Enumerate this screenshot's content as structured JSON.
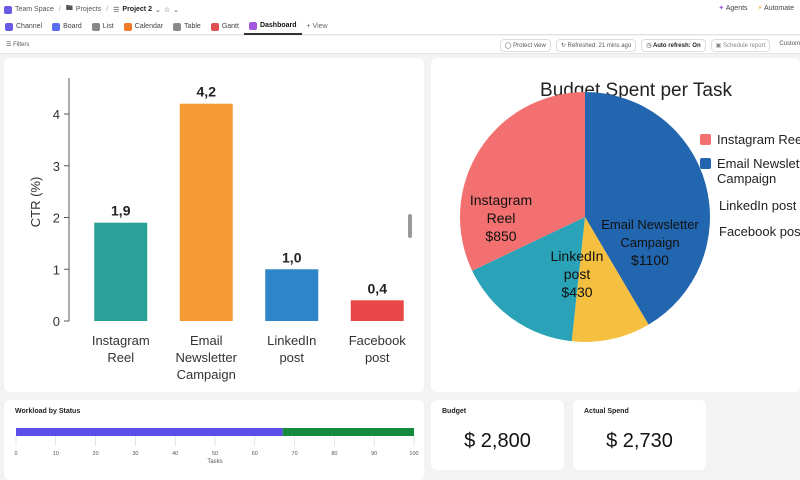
{
  "breadcrumb": {
    "space": "Team Space",
    "folder": "Projects",
    "project": "Project 2"
  },
  "top_actions": {
    "agents": "Agents",
    "automate": "Automate"
  },
  "views": [
    {
      "label": "Channel",
      "color": "#6a5be2"
    },
    {
      "label": "Board",
      "color": "#5a6cf0"
    },
    {
      "label": "List",
      "color": "#888888"
    },
    {
      "label": "Calendar",
      "color": "#f07a2a"
    },
    {
      "label": "Table",
      "color": "#8a8a8a"
    },
    {
      "label": "Gantt",
      "color": "#e05050"
    },
    {
      "label": "Dashboard",
      "color": "#a259e0"
    }
  ],
  "add_view": "+ View",
  "toolbar": {
    "filters": "Filters",
    "protect": "Protect view",
    "refreshed": "Refreshed: 21 mins ago",
    "auto_refresh": "Auto refresh: On",
    "schedule": "Schedule report",
    "custom": "Custom"
  },
  "bar_chart": {
    "ylabel": "CTR (%)",
    "ticks": [
      "0",
      "1",
      "2",
      "3",
      "4"
    ]
  },
  "pie_chart": {
    "title": "Budget Spent per Task"
  },
  "workload": {
    "title": "Workload by Status",
    "xlabel": "Tasks",
    "ticks": [
      "0",
      "10",
      "20",
      "30",
      "40",
      "50",
      "60",
      "70",
      "80",
      "90",
      "100"
    ],
    "segments": [
      {
        "value": 67,
        "color": "#5b4ee6"
      },
      {
        "value": 33,
        "color": "#138a3e"
      }
    ]
  },
  "budget": {
    "title": "Budget",
    "value": "$ 2,800"
  },
  "actual": {
    "title": "Actual Spend",
    "value": "$ 2,730"
  },
  "chart_data": [
    {
      "type": "bar",
      "categories": [
        "Instagram Reel",
        "Email Newsletter Campaign",
        "LinkedIn post",
        "Facebook post"
      ],
      "category_lines": [
        [
          "Instagram",
          "Reel"
        ],
        [
          "Email",
          "Newsletter",
          "Campaign"
        ],
        [
          "LinkedIn",
          "post"
        ],
        [
          "Facebook",
          "post"
        ]
      ],
      "values": [
        1.9,
        4.2,
        1.0,
        0.4
      ],
      "value_labels": [
        "1,9",
        "4,2",
        "1,0",
        "0,4"
      ],
      "colors": [
        "#2aa198",
        "#f59a34",
        "#2e86c8",
        "#e84848"
      ],
      "ylabel": "CTR (%)",
      "ylim": [
        0,
        4.6
      ]
    },
    {
      "type": "pie",
      "title": "Budget Spent per Task",
      "labels": [
        "Email Newsletter Campaign",
        "Facebook post",
        "LinkedIn post",
        "Instagram Reel"
      ],
      "values": [
        1100,
        270,
        430,
        850
      ],
      "colors": [
        "#2366b0",
        "#f5c03f",
        "#2aa3b8",
        "#f27070"
      ],
      "slice_labels": [
        [
          "Email Newsletter",
          "Campaign",
          "$1100"
        ],
        [],
        [
          "LinkedIn",
          "post",
          "$430"
        ],
        [
          "Instagram",
          "Reel",
          "$850"
        ]
      ],
      "legend": [
        {
          "label": [
            "Instagram Reel"
          ],
          "color": "#f27070"
        },
        {
          "label": [
            "Email Newsletter",
            "Campaign"
          ],
          "color": "#2366b0"
        },
        {
          "label": [
            "LinkedIn post"
          ],
          "color": "#2aa3b8"
        },
        {
          "label": [
            "Facebook post"
          ],
          "color": "#f5c03f"
        }
      ]
    }
  ]
}
